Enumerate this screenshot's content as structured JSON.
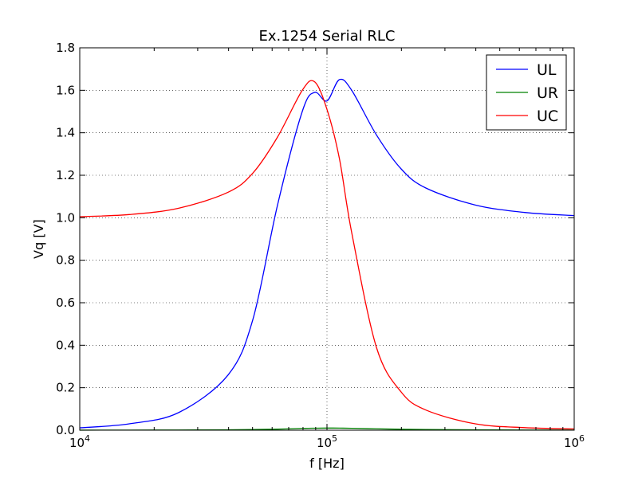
{
  "chart_data": {
    "type": "line",
    "title": "Ex.1254 Serial RLC",
    "xlabel": "f [Hz]",
    "ylabel": "Vq [V]",
    "x_scale": "log",
    "xlim": [
      10000,
      1000000
    ],
    "ylim": [
      0.0,
      1.8
    ],
    "grid": true,
    "legend_position": "top-right",
    "x_ticks": [
      {
        "value": 10000,
        "base": "10",
        "exp": "4"
      },
      {
        "value": 100000,
        "base": "10",
        "exp": "5"
      },
      {
        "value": 1000000,
        "base": "10",
        "exp": "6"
      }
    ],
    "y_ticks": [
      "0.0",
      "0.2",
      "0.4",
      "0.6",
      "0.8",
      "1.0",
      "1.2",
      "1.4",
      "1.6",
      "1.8"
    ],
    "x": [
      10000,
      15850,
      25120,
      39810,
      50120,
      63100,
      79430,
      89130,
      100000,
      112200,
      125900,
      158500,
      199500,
      251200,
      398100,
      631000,
      1000000
    ],
    "series": [
      {
        "name": "UL",
        "color": "#0000ff",
        "values": [
          0.011,
          0.03,
          0.083,
          0.26,
          0.52,
          1.06,
          1.5,
          1.59,
          1.55,
          1.65,
          1.6,
          1.39,
          1.23,
          1.14,
          1.06,
          1.025,
          1.01
        ]
      },
      {
        "name": "UR",
        "color": "#008000",
        "values": [
          0.0003,
          0.0005,
          0.0009,
          0.0018,
          0.003,
          0.005,
          0.0085,
          0.0095,
          0.01,
          0.0098,
          0.0088,
          0.0065,
          0.0045,
          0.0033,
          0.0018,
          0.0009,
          0.0005
        ]
      },
      {
        "name": "UC",
        "color": "#ff0000",
        "values": [
          1.005,
          1.015,
          1.045,
          1.12,
          1.21,
          1.38,
          1.6,
          1.64,
          1.51,
          1.28,
          0.93,
          0.39,
          0.18,
          0.095,
          0.03,
          0.012,
          0.006
        ]
      }
    ]
  }
}
